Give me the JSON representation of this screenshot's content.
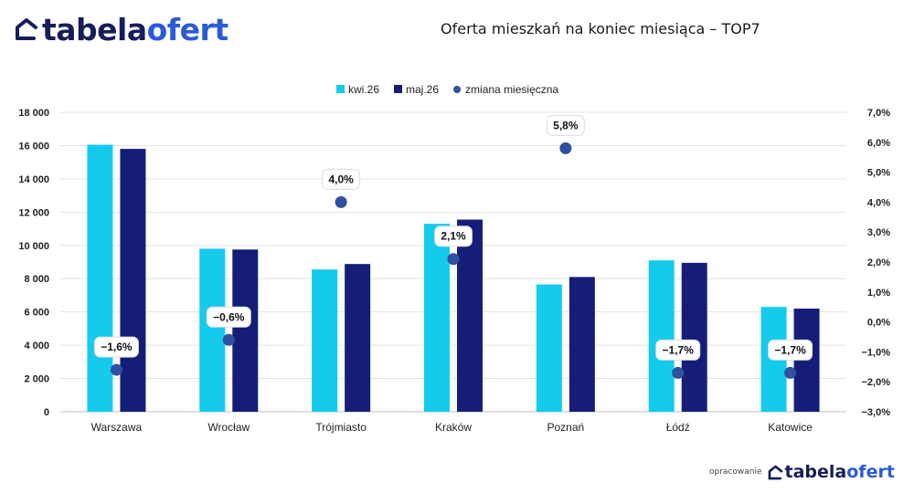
{
  "brand": {
    "prefix": "tabela",
    "accent": "ofert"
  },
  "footer": {
    "credit": "opracowanie"
  },
  "colors": {
    "series1": "#14cbee",
    "series2": "#141e78",
    "dots": "#3050a0",
    "navy": "#161d5a",
    "accent": "#2a5bd7"
  },
  "chart_data": {
    "type": "bar",
    "title": "Oferta mieszkań na koniec miesiąca – TOP7",
    "categories": [
      "Warszawa",
      "Wrocław",
      "Trójmiasto",
      "Kraków",
      "Poznań",
      "Łódź",
      "Katowice"
    ],
    "series": [
      {
        "name": "kwi.26",
        "values": [
          16050,
          9800,
          8550,
          11300,
          7650,
          9100,
          6300
        ]
      },
      {
        "name": "maj.26",
        "values": [
          15800,
          9750,
          8880,
          11550,
          8100,
          8950,
          6200
        ]
      }
    ],
    "line_series": {
      "name": "zmiana miesięczna",
      "values": [
        -1.6,
        -0.6,
        4.0,
        2.1,
        5.8,
        -1.7,
        -1.7
      ],
      "labels": [
        "−1,6%",
        "−0,6%",
        "4,0%",
        "2,1%",
        "5,8%",
        "−1,7%",
        "−1,7%"
      ]
    },
    "y_left": {
      "min": 0,
      "max": 18000,
      "ticks": [
        "0",
        "2 000",
        "4 000",
        "6 000",
        "8 000",
        "10 000",
        "12 000",
        "14 000",
        "16 000",
        "18 000"
      ]
    },
    "y_right": {
      "min": -3,
      "max": 7,
      "ticks": [
        "−3,0%",
        "−2,0%",
        "−1,0%",
        "0,0%",
        "1,0%",
        "2,0%",
        "3,0%",
        "4,0%",
        "5,0%",
        "6,0%",
        "7,0%"
      ]
    },
    "grid": true,
    "legend_position": "top-center"
  }
}
